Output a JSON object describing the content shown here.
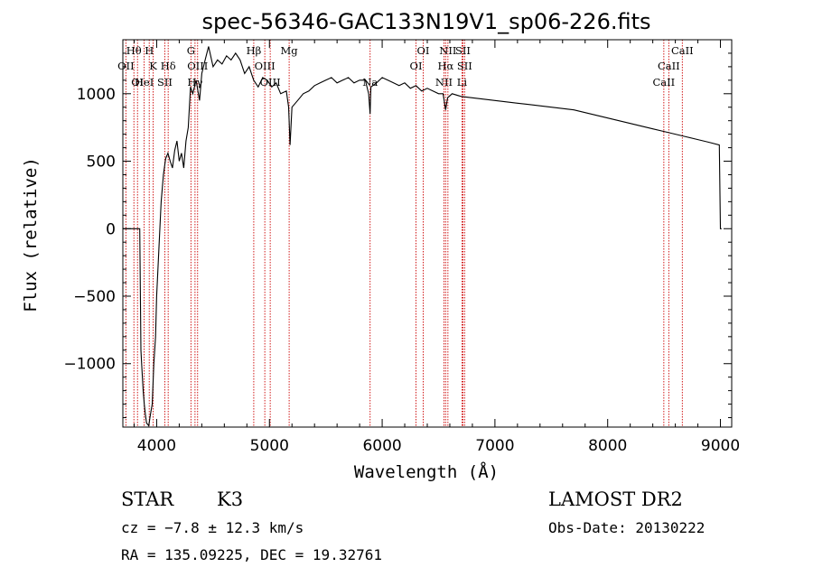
{
  "chart_data": {
    "type": "line",
    "title": "spec-56346-GAC133N19V1_sp06-226.fits",
    "xlabel": "Wavelength (Å)",
    "ylabel": "Flux (relative)",
    "xlim": [
      3700,
      9100
    ],
    "ylim": [
      -1470,
      1400
    ],
    "x_ticks": [
      4000,
      5000,
      6000,
      7000,
      8000,
      9000
    ],
    "y_ticks": [
      -1000,
      -500,
      0,
      500,
      1000
    ],
    "grid": false,
    "series": [
      {
        "x": [
          3700,
          3800,
          3850,
          3860,
          3870,
          3880,
          3890,
          3900,
          3910,
          3920,
          3930,
          3940,
          3950,
          3960,
          3975,
          3990,
          4000,
          4020,
          4040,
          4060,
          4080,
          4100,
          4120,
          4140,
          4160,
          4180,
          4200,
          4220,
          4240,
          4260,
          4280,
          4300,
          4320,
          4350,
          4380,
          4400,
          4430,
          4460,
          4500,
          4540,
          4580,
          4620,
          4660,
          4700,
          4740,
          4780,
          4820,
          4860,
          4900,
          4940,
          4980,
          5020,
          5060,
          5100,
          5150,
          5170,
          5183,
          5200,
          5250,
          5300,
          5350,
          5400,
          5450,
          5500,
          5550,
          5600,
          5650,
          5700,
          5750,
          5800,
          5850,
          5880,
          5893,
          5900,
          5950,
          6000,
          6050,
          6100,
          6150,
          6200,
          6250,
          6300,
          6350,
          6400,
          6450,
          6500,
          6540,
          6563,
          6580,
          6620,
          6700,
          6800,
          6900,
          7000,
          7100,
          7200,
          7300,
          7400,
          7500,
          7600,
          7700,
          7800,
          7900,
          8000,
          8100,
          8200,
          8300,
          8400,
          8500,
          8600,
          8700,
          8800,
          8900,
          8990,
          9000,
          9010
        ],
        "y": [
          0,
          0,
          0,
          -900,
          -1050,
          -1200,
          -1300,
          -1380,
          -1440,
          -1450,
          -1460,
          -1400,
          -1350,
          -1300,
          -1000,
          -800,
          -500,
          -150,
          200,
          400,
          520,
          560,
          500,
          450,
          580,
          650,
          500,
          560,
          450,
          650,
          750,
          1050,
          1000,
          1100,
          950,
          1150,
          1250,
          1350,
          1200,
          1250,
          1220,
          1280,
          1250,
          1300,
          1250,
          1150,
          1200,
          1100,
          1050,
          1120,
          1100,
          1050,
          1080,
          1000,
          1020,
          900,
          620,
          900,
          950,
          1000,
          1020,
          1060,
          1080,
          1100,
          1120,
          1080,
          1100,
          1120,
          1080,
          1100,
          1100,
          1000,
          850,
          1050,
          1080,
          1120,
          1100,
          1080,
          1060,
          1080,
          1040,
          1060,
          1020,
          1040,
          1020,
          1000,
          1000,
          880,
          970,
          1000,
          980,
          970,
          960,
          950,
          940,
          930,
          920,
          910,
          900,
          890,
          880,
          860,
          840,
          820,
          800,
          780,
          760,
          740,
          720,
          700,
          680,
          660,
          640,
          620,
          0,
          0
        ]
      }
    ],
    "lines": [
      {
        "label": "Hθ",
        "x": 3798,
        "row": 0
      },
      {
        "label": "H",
        "x": 3934,
        "row": 0
      },
      {
        "label": "G",
        "x": 4304,
        "row": 0
      },
      {
        "label": "Hβ",
        "x": 4861,
        "row": 0
      },
      {
        "label": "Mg",
        "x": 5175,
        "row": 0
      },
      {
        "label": "OI",
        "x": 6364,
        "row": 0
      },
      {
        "label": "NII",
        "x": 6583,
        "row": 0
      },
      {
        "label": "SII",
        "x": 6716,
        "row": 0
      },
      {
        "label": "CaII",
        "x": 8662,
        "row": 0
      },
      {
        "label": "OII",
        "x": 3727,
        "row": 1
      },
      {
        "label": "K",
        "x": 3969,
        "row": 1
      },
      {
        "label": "Hδ",
        "x": 4102,
        "row": 1
      },
      {
        "label": "OIII",
        "x": 4363,
        "row": 1
      },
      {
        "label": "OIII",
        "x": 4959,
        "row": 1
      },
      {
        "label": "OI",
        "x": 6300,
        "row": 1
      },
      {
        "label": "Hα",
        "x": 6563,
        "row": 1
      },
      {
        "label": "SII",
        "x": 6731,
        "row": 1
      },
      {
        "label": "CaII",
        "x": 8542,
        "row": 1
      },
      {
        "label": "OI",
        "x": 3830,
        "row": 2
      },
      {
        "label": "HeI",
        "x": 3889,
        "row": 2
      },
      {
        "label": "SII",
        "x": 4072,
        "row": 2
      },
      {
        "label": "Hγ",
        "x": 4340,
        "row": 2
      },
      {
        "label": "OIII",
        "x": 5007,
        "row": 2
      },
      {
        "label": "Na",
        "x": 5893,
        "row": 2
      },
      {
        "label": "NII",
        "x": 6548,
        "row": 2
      },
      {
        "label": "Li",
        "x": 6708,
        "row": 2
      },
      {
        "label": "CaII",
        "x": 8498,
        "row": 2
      }
    ]
  },
  "info": {
    "class": "STAR",
    "subclass": "K3",
    "cz": "cz = −7.8 ± 12.3 km/s",
    "radec": "RA = 135.09225, DEC =  19.32761",
    "survey": "LAMOST DR2",
    "obs_date": "Obs-Date: 20130222"
  },
  "colors": {
    "line_marker": "#cc0000",
    "axes": "#000000",
    "spectrum": "#000000"
  }
}
